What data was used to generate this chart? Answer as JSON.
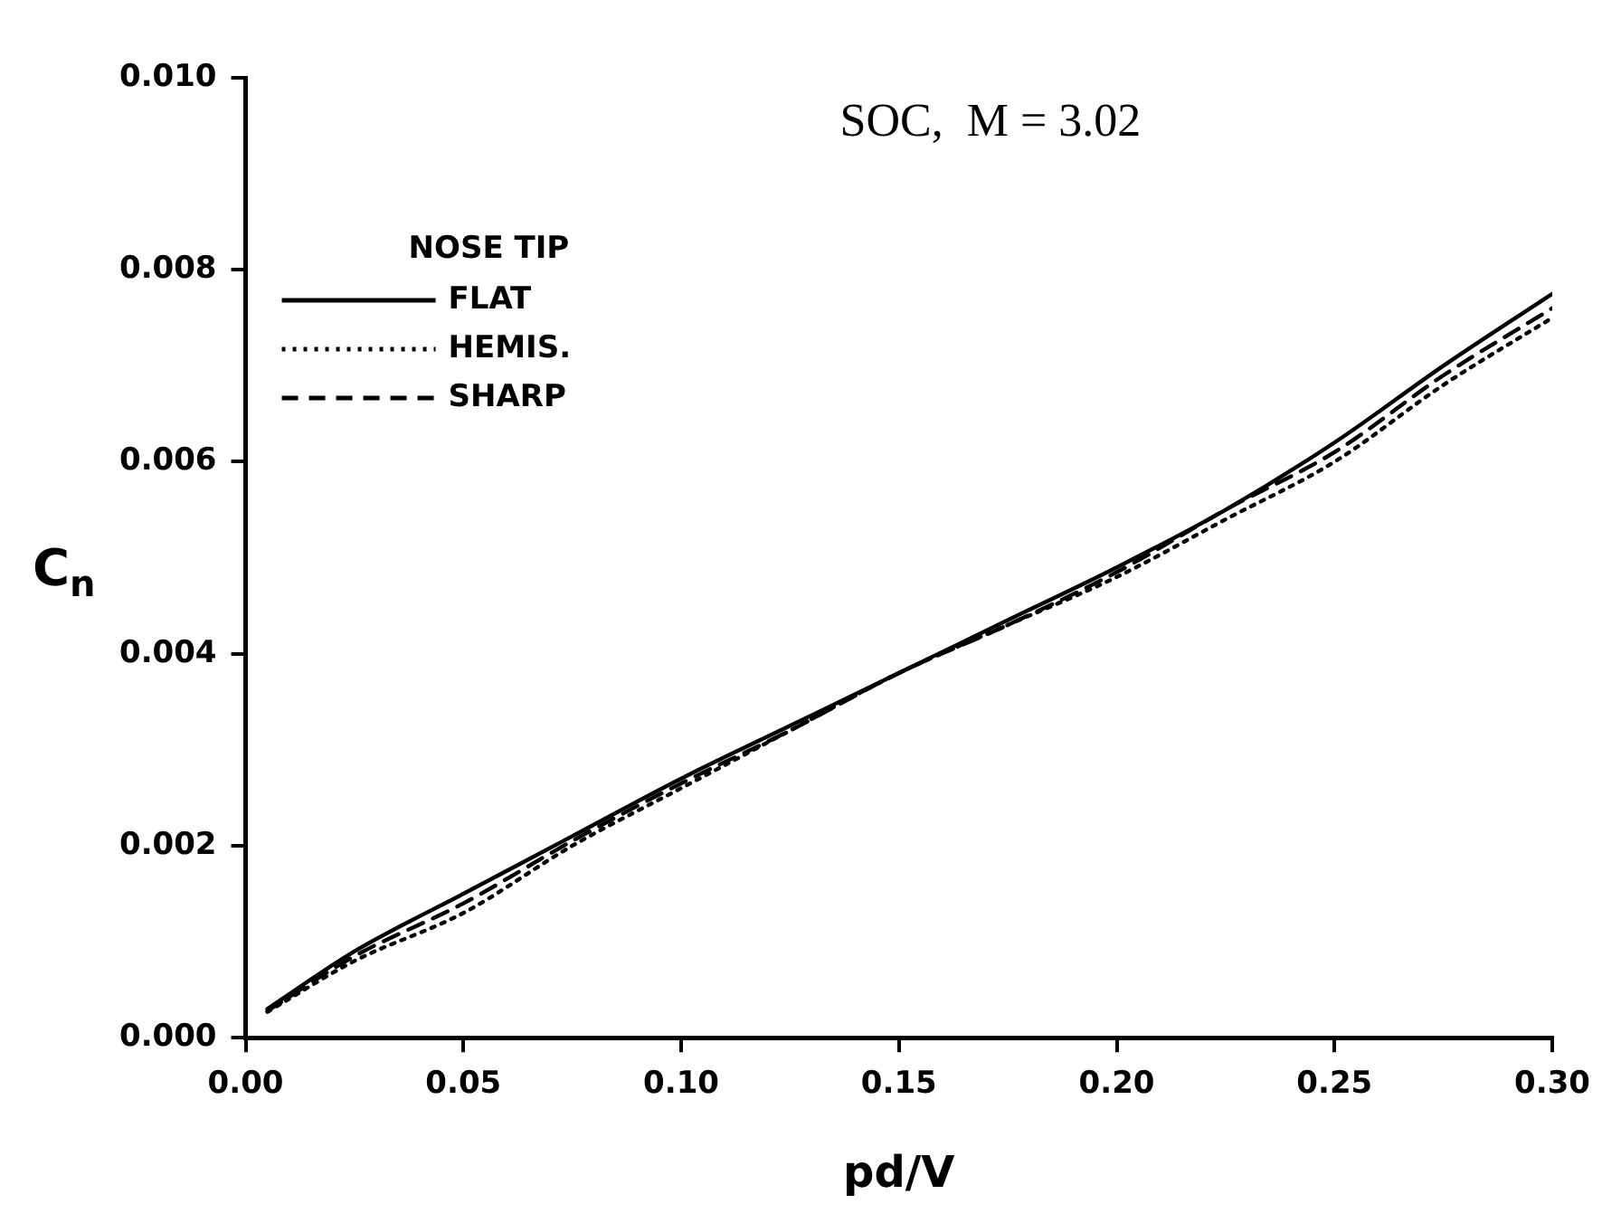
{
  "chart_data": {
    "type": "line",
    "title": "SOC,  M = 3.02",
    "xlabel": "pd/V",
    "ylabel": "C$_{n}$",
    "legend_title": "NOSE TIP",
    "legend": "top left",
    "grid": false,
    "marker": "none",
    "xlim": [
      0,
      0.3
    ],
    "xticks": [
      {
        "value": 0,
        "label": "0.00"
      },
      {
        "value": 0.05,
        "label": "0.05"
      },
      {
        "value": 0.1,
        "label": "0.10"
      },
      {
        "value": 0.15,
        "label": "0.15"
      },
      {
        "value": 0.2,
        "label": "0.20"
      },
      {
        "value": 0.25,
        "label": "0.25"
      },
      {
        "value": 0.3,
        "label": "0.30"
      }
    ],
    "ylim": [
      0,
      0.01
    ],
    "yticks": [
      {
        "value": 0,
        "label": "0.000"
      },
      {
        "value": 0.002,
        "label": "0.002"
      },
      {
        "value": 0.004,
        "label": "0.004"
      },
      {
        "value": 0.006,
        "label": "0.006"
      },
      {
        "value": 0.008,
        "label": "0.008"
      },
      {
        "value": 0.01,
        "label": "0.010"
      }
    ],
    "x": [
      0.005,
      0.025,
      0.05,
      0.075,
      0.1,
      0.125,
      0.15,
      0.175,
      0.2,
      0.225,
      0.25,
      0.275,
      0.3
    ],
    "series": [
      {
        "name": "FLAT",
        "color": "#000000",
        "line_style": "solid",
        "values": [
          0.0003,
          0.0009,
          0.0015,
          0.0021,
          0.0027,
          0.00325,
          0.0038,
          0.00435,
          0.0049,
          0.0055,
          0.0062,
          0.007,
          0.00775
        ]
      },
      {
        "name": "HEMIS.",
        "color": "#000000",
        "line_style": "dotted",
        "values": [
          0.00027,
          0.0008,
          0.0013,
          0.002,
          0.0026,
          0.0032,
          0.0038,
          0.0043,
          0.0048,
          0.0054,
          0.006,
          0.0068,
          0.0075
        ]
      },
      {
        "name": "SHARP",
        "color": "#000000",
        "line_style": "dashed",
        "values": [
          0.00028,
          0.00085,
          0.0014,
          0.00205,
          0.00265,
          0.0032,
          0.0038,
          0.0043,
          0.00485,
          0.0055,
          0.0061,
          0.0069,
          0.0076
        ]
      }
    ]
  }
}
